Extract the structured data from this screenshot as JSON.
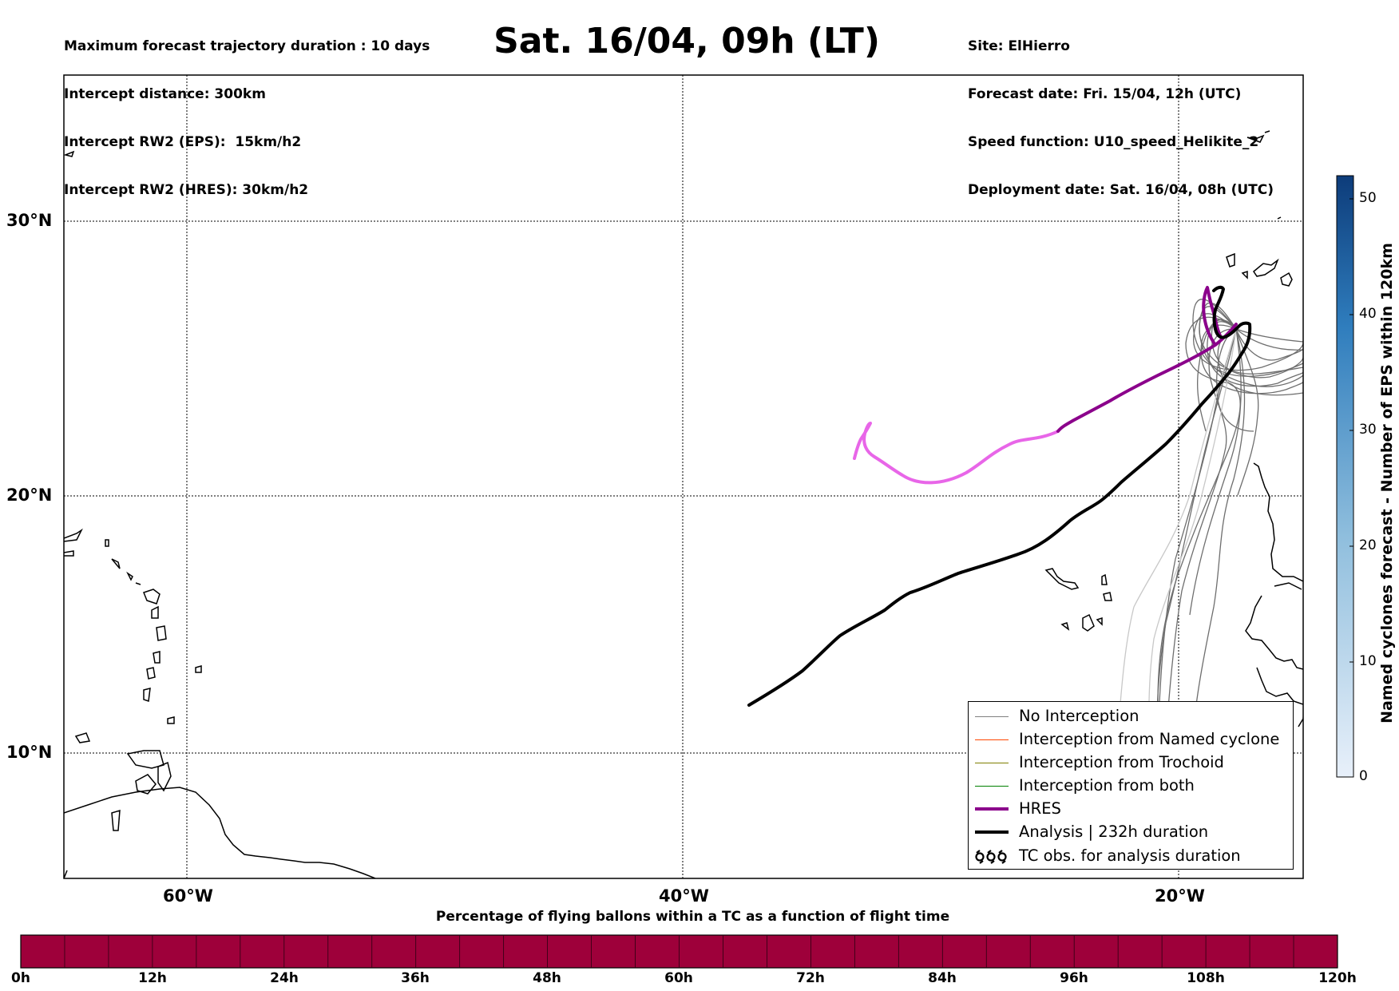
{
  "header_left": [
    "Maximum forecast trajectory duration : 10 days",
    "Intercept distance: 300km",
    "Intercept RW2 (EPS):  15km/h2",
    "Intercept RW2 (HRES): 30km/h2"
  ],
  "title": "Sat. 16/04, 09h (LT)",
  "header_right": [
    "Site: ElHierro",
    "Forecast date: Fri. 15/04, 12h (UTC)",
    "Speed function: U10_speed_Helikite_2",
    "Deployment date: Sat. 16/04, 08h (UTC)"
  ],
  "map": {
    "lat_labels": [
      "30°N",
      "20°N",
      "10°N"
    ],
    "lon_labels": [
      "60°W",
      "40°W",
      "20°W"
    ],
    "gridlines": "dotted",
    "colors": {
      "eps": "#6e6e6e",
      "eps_faint": "#c8c8c8",
      "hres": "#8b008b",
      "hres_late": "#e866e8",
      "analysis": "#000000",
      "coast": "#000000"
    }
  },
  "legend": {
    "items": [
      {
        "label": "No Interception",
        "color": "#808080",
        "style": "thin"
      },
      {
        "label": "Interception from Named cyclone",
        "color": "#ff4500",
        "style": "thin"
      },
      {
        "label": "Interception from Trochoid",
        "color": "#808000",
        "style": "thin"
      },
      {
        "label": "Interception from both",
        "color": "#008000",
        "style": "thin"
      },
      {
        "label": "HRES",
        "color": "#8b008b",
        "style": "thick"
      },
      {
        "label": "Analysis | 232h duration",
        "color": "#000000",
        "style": "thick"
      },
      {
        "label": "TC obs. for analysis duration",
        "color": "#000000",
        "style": "cyclone-icon"
      }
    ]
  },
  "colorbar_vertical": {
    "title": "Named cyclones forecast - Number of EPS within 120km",
    "ticks": [
      "50",
      "40",
      "30",
      "20",
      "10",
      "0"
    ],
    "color_low": "#e8f0fa",
    "color_high": "#0d3c7a"
  },
  "colorbar_horizontal": {
    "title": "Percentage of flying ballons within a TC as a function of flight time",
    "ticks": [
      "0h",
      "12h",
      "24h",
      "36h",
      "48h",
      "60h",
      "72h",
      "84h",
      "96h",
      "108h",
      "120h"
    ],
    "fill_color": "#9e003a"
  }
}
